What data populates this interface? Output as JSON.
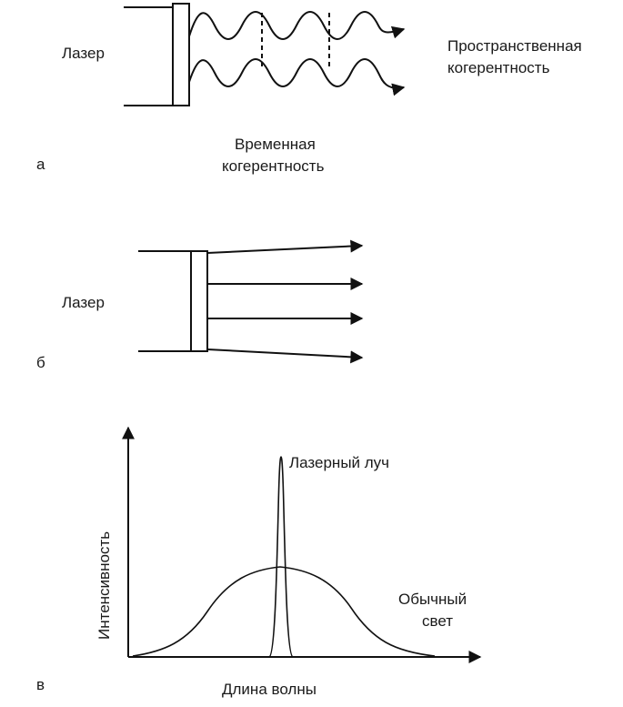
{
  "panel_a": {
    "letter": "а",
    "source_label": "Лазер",
    "spatial_label_line1": "Пространственная",
    "spatial_label_line2": "когерентность",
    "temporal_label_line1": "Временная",
    "temporal_label_line2": "когерентность"
  },
  "panel_b": {
    "letter": "б",
    "source_label": "Лазер"
  },
  "panel_c": {
    "letter": "в",
    "y_axis_label": "Интенсивность",
    "x_axis_label": "Длина волны",
    "laser_label": "Лазерный луч",
    "ordinary_label_line1": "Обычный",
    "ordinary_label_line2": "свет"
  },
  "colors": {
    "ink": "#111111",
    "background": "#ffffff"
  }
}
